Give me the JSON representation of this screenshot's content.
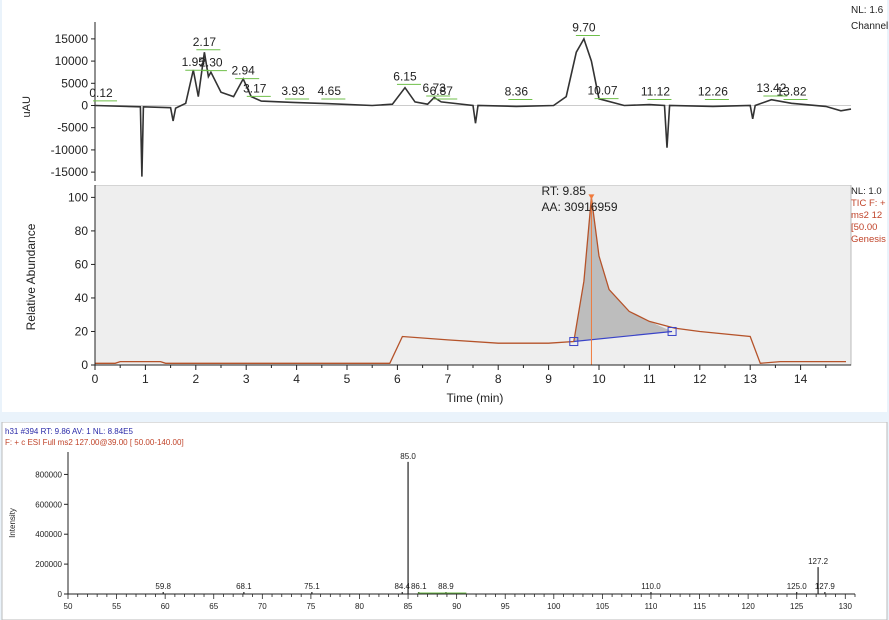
{
  "chart_data": [
    {
      "type": "line",
      "panel": "uv-chromatogram",
      "ylabel": "uAU",
      "xlim": [
        0,
        15
      ],
      "ylim": [
        -17000,
        17000
      ],
      "yticks": [
        15000,
        10000,
        5000,
        0,
        -5000,
        -10000,
        -15000
      ],
      "corner_text": [
        "NL: 1.6",
        "Channel"
      ],
      "peak_labels": [
        {
          "x": 0.12,
          "y": 1500,
          "text": "0.12"
        },
        {
          "x": 1.95,
          "y": 8400,
          "text": "1.95"
        },
        {
          "x": 2.17,
          "y": 13000,
          "text": "2.17"
        },
        {
          "x": 2.3,
          "y": 8300,
          "text": "2.30"
        },
        {
          "x": 2.94,
          "y": 6500,
          "text": "2.94"
        },
        {
          "x": 3.17,
          "y": 2500,
          "text": "3.17"
        },
        {
          "x": 3.93,
          "y": 1900,
          "text": "3.93"
        },
        {
          "x": 4.65,
          "y": 1900,
          "text": "4.65"
        },
        {
          "x": 6.15,
          "y": 5200,
          "text": "6.15"
        },
        {
          "x": 6.73,
          "y": 2600,
          "text": "6.73"
        },
        {
          "x": 6.87,
          "y": 1900,
          "text": "6.87"
        },
        {
          "x": 8.36,
          "y": 1800,
          "text": "8.36"
        },
        {
          "x": 9.7,
          "y": 16200,
          "text": "9.70"
        },
        {
          "x": 10.07,
          "y": 2000,
          "text": "10.07"
        },
        {
          "x": 11.12,
          "y": 1800,
          "text": "11.12"
        },
        {
          "x": 12.26,
          "y": 1800,
          "text": "12.26"
        },
        {
          "x": 13.42,
          "y": 2600,
          "text": "13.42"
        },
        {
          "x": 13.82,
          "y": 1800,
          "text": "13.82"
        }
      ],
      "trace": [
        [
          0.0,
          0
        ],
        [
          0.9,
          -300
        ],
        [
          0.93,
          -16000
        ],
        [
          0.96,
          -300
        ],
        [
          1.5,
          -500
        ],
        [
          1.55,
          -3500
        ],
        [
          1.6,
          -600
        ],
        [
          1.8,
          500
        ],
        [
          1.95,
          8000
        ],
        [
          2.05,
          2000
        ],
        [
          2.17,
          12000
        ],
        [
          2.25,
          6500
        ],
        [
          2.3,
          7500
        ],
        [
          2.5,
          3000
        ],
        [
          2.75,
          2000
        ],
        [
          2.94,
          6000
        ],
        [
          3.1,
          2000
        ],
        [
          3.3,
          1000
        ],
        [
          3.93,
          700
        ],
        [
          4.65,
          400
        ],
        [
          5.5,
          0
        ],
        [
          5.9,
          300
        ],
        [
          6.15,
          4000
        ],
        [
          6.35,
          800
        ],
        [
          6.6,
          300
        ],
        [
          6.73,
          1800
        ],
        [
          6.87,
          800
        ],
        [
          7.5,
          0
        ],
        [
          7.55,
          -4000
        ],
        [
          7.6,
          0
        ],
        [
          8.36,
          -200
        ],
        [
          9.1,
          0
        ],
        [
          9.35,
          2000
        ],
        [
          9.55,
          12000
        ],
        [
          9.7,
          15000
        ],
        [
          9.85,
          10000
        ],
        [
          10.0,
          1500
        ],
        [
          10.5,
          0
        ],
        [
          11.0,
          200
        ],
        [
          11.3,
          0
        ],
        [
          11.35,
          -9500
        ],
        [
          11.4,
          0
        ],
        [
          12.26,
          -200
        ],
        [
          13.0,
          0
        ],
        [
          13.05,
          -3000
        ],
        [
          13.1,
          0
        ],
        [
          13.42,
          1300
        ],
        [
          13.82,
          500
        ],
        [
          14.5,
          -200
        ],
        [
          14.8,
          -1200
        ],
        [
          15.0,
          -800
        ]
      ]
    },
    {
      "type": "area",
      "panel": "tic-chromatogram",
      "xlabel": "Time (min)",
      "ylabel": "Relative Abundance",
      "xlim": [
        0,
        15
      ],
      "ylim": [
        0,
        105
      ],
      "xticks": [
        0,
        1,
        2,
        3,
        4,
        5,
        6,
        7,
        8,
        9,
        10,
        11,
        12,
        13,
        14
      ],
      "yticks": [
        0,
        20,
        40,
        60,
        80,
        100
      ],
      "peak_annotation": {
        "rt_label": "RT: 9.85",
        "area_label": "AA: 30916959",
        "rt": 9.85
      },
      "integration_baseline": [
        [
          9.5,
          14
        ],
        [
          11.45,
          20
        ]
      ],
      "corner_text": [
        "NL: 1.0",
        "TIC F: +",
        "ms2 12",
        "[50.00",
        "Genesis"
      ],
      "trace": [
        [
          0.0,
          1
        ],
        [
          0.4,
          1
        ],
        [
          0.5,
          2
        ],
        [
          1.3,
          2
        ],
        [
          1.4,
          1
        ],
        [
          5.85,
          1
        ],
        [
          6.1,
          17
        ],
        [
          7.0,
          15
        ],
        [
          8.0,
          13
        ],
        [
          9.0,
          13
        ],
        [
          9.5,
          14
        ],
        [
          9.7,
          50
        ],
        [
          9.85,
          100
        ],
        [
          10.0,
          65
        ],
        [
          10.2,
          45
        ],
        [
          10.6,
          32
        ],
        [
          11.0,
          26
        ],
        [
          11.5,
          22
        ],
        [
          12.0,
          20
        ],
        [
          13.0,
          17
        ],
        [
          13.2,
          1
        ],
        [
          13.6,
          2
        ],
        [
          14.9,
          2
        ]
      ]
    },
    {
      "type": "bar",
      "panel": "ms2-spectrum",
      "header": {
        "line1": "h31 #394   RT: 9.86   AV: 1   NL: 8.84E5",
        "line2": "F: + c ESI Full ms2 127.00@39.00 [ 50.00-140.00]"
      },
      "ylabel": "Intensity",
      "xlim": [
        50,
        131
      ],
      "ylim": [
        0,
        950000
      ],
      "yticks": [
        0,
        200000,
        400000,
        600000,
        800000
      ],
      "ytick_labels": [
        "0",
        "200000",
        "400000",
        "600000",
        "800000"
      ],
      "xticks": [
        50,
        55,
        60,
        65,
        70,
        75,
        80,
        85,
        90,
        95,
        100,
        105,
        110,
        115,
        120,
        125,
        130
      ],
      "peaks": [
        {
          "mz": 59.8,
          "intensity": 5000,
          "label": "59.8"
        },
        {
          "mz": 68.1,
          "intensity": 4000,
          "label": "68.1"
        },
        {
          "mz": 75.1,
          "intensity": 4000,
          "label": "75.1"
        },
        {
          "mz": 84.4,
          "intensity": 9000,
          "label": "84.4"
        },
        {
          "mz": 85.0,
          "intensity": 884000,
          "label": "85.0"
        },
        {
          "mz": 86.1,
          "intensity": 7000,
          "label": "86.1"
        },
        {
          "mz": 88.9,
          "intensity": 3000,
          "label": "88.9"
        },
        {
          "mz": 110.0,
          "intensity": 3000,
          "label": "110.0"
        },
        {
          "mz": 125.0,
          "intensity": 4000,
          "label": "125.0"
        },
        {
          "mz": 127.2,
          "intensity": 180000,
          "label": "127.2"
        },
        {
          "mz": 127.9,
          "intensity": 5000,
          "label": "127.9"
        }
      ]
    }
  ],
  "colors": {
    "uv_trace": "#333333",
    "uv_peak_marker": "#6fbf4a",
    "tic_trace": "#b5532a",
    "tic_fill": "#bdbdbd",
    "tic_baseline": "#3a44c8",
    "tic_rt_line": "#f07a3c",
    "spectrum_header_line1": "#2a2aa8",
    "spectrum_header_line2": "#c0442a",
    "corner_tic": "#c0442a"
  }
}
